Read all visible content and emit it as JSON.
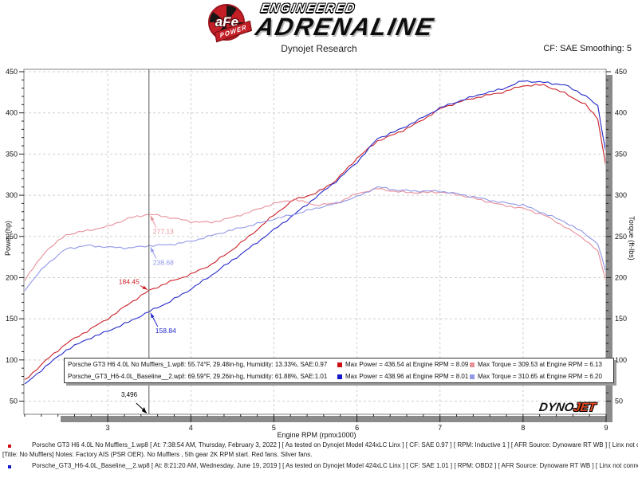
{
  "branding": {
    "afe": "aFe",
    "power": "POWER",
    "engineered": "ENGINEERED",
    "adrenaline": "ADRENALINE",
    "dynojet_dyno": "DYNO",
    "dynojet_jet": "JET"
  },
  "header": {
    "title": "Dynojet Research",
    "smoothing": "CF: SAE Smoothing: 5"
  },
  "legend": {
    "rows": [
      {
        "name": "Porsche GT3 H6 4.0L No Mufflers_1.wp8",
        "conditions": ": 55.74°F, 29.48in-hg, Humidity: 13.33%, SAE:0.97",
        "max_power": "Max Power = 436.54 at Engine RPM = 8.09",
        "max_torque": "Max Torque = 309.53 at Engine RPM = 6.13",
        "power_color": "#cc1016",
        "torque_color": "#e8909a"
      },
      {
        "name": "Porsche_GT3_H6-4.0L_Baseline__2.wp8",
        "conditions": ": 69.59°F, 29.26in-hg, Humidity: 61.88%, SAE:1.01",
        "max_power": "Max Power = 438.96 at Engine RPM = 8.01",
        "max_torque": "Max Torque = 310.65 at Engine RPM = 6.20",
        "power_color": "#1418cc",
        "torque_color": "#9098e8"
      }
    ]
  },
  "footer": {
    "entries": [
      {
        "bullet_color": "#cc1016",
        "line1": "Porsche GT3 H6 4.0L No Mufflers_1.wp8 [ At: 7:38:54 AM, Thursday, February 3, 2022 ] [ As tested on Dynojet Model 424xLC Linx ] [ CF: SAE 0.97 ] [ RPM: Inductive 1 ] [ AFR Source: Dynoware RT WB ] [ Linx not connected ]",
        "line2": "[Title: No Mufflers]  Notes: Factory AIS (PSR OER). No Mufflers , 5th gear 2K RPM start. Red fans. Silver fans."
      },
      {
        "bullet_color": "#1418cc",
        "line1": "Porsche_GT3_H6-4.0L_Baseline__2.wp8 [ At: 8:21:20 AM, Wednesday, June 19, 2019 ] [ As tested on Dynojet Model 424xLC Linx ] [ CF: SAE 1.01 ] [ RPM: OBD2 ] [ AFR Source: Dynoware RT WB ] [ Linx not connected ] [Title: B",
        "line2": ""
      }
    ]
  },
  "chart_data": {
    "type": "line",
    "title": "Dynojet Research",
    "xlabel": "Engine RPM (rpmx1000)",
    "ylabel_left": "Power (hp)",
    "ylabel_right": "Torque (ft-lbs)",
    "xlim": [
      2,
      9
    ],
    "ylim": [
      50,
      450
    ],
    "x_major_ticks": [
      3,
      4,
      5,
      6,
      7,
      8,
      9
    ],
    "x_minor_step": 0.2,
    "y_major_step": 50,
    "y_minor_step": 10,
    "grid": true,
    "x": [
      2.0,
      2.25,
      2.5,
      2.75,
      3.0,
      3.25,
      3.5,
      3.75,
      4.0,
      4.25,
      4.5,
      4.75,
      5.0,
      5.25,
      5.5,
      5.75,
      6.0,
      6.25,
      6.5,
      6.75,
      7.0,
      7.25,
      7.5,
      7.75,
      8.0,
      8.25,
      8.5,
      8.75,
      8.9,
      9.0
    ],
    "series": [
      {
        "name": "Power - No Mufflers_1",
        "unit": "hp",
        "color": "#cc2028",
        "values": [
          75,
          99,
          120,
          135,
          150,
          168,
          184.4,
          195,
          204,
          216,
          234,
          254,
          276,
          295,
          302,
          318,
          345,
          366,
          376,
          389,
          405,
          414,
          420,
          425,
          433,
          434,
          424,
          410,
          393,
          334
        ]
      },
      {
        "name": "Power - Baseline_2",
        "unit": "hp",
        "color": "#2428c8",
        "values": [
          70,
          92,
          112,
          125,
          135,
          146,
          158.8,
          171,
          186,
          203,
          221,
          239,
          258,
          277,
          297,
          317,
          340,
          369,
          379,
          392,
          406,
          415,
          423,
          429,
          438.9,
          437,
          434,
          421,
          408,
          351
        ]
      },
      {
        "name": "Torque - No Mufflers_1",
        "unit": "ft-lbs",
        "color": "#e8909a",
        "values": [
          197,
          232,
          252,
          257,
          262,
          272,
          277.1,
          273,
          268,
          267,
          273,
          281,
          290,
          295,
          288,
          290,
          302,
          308,
          304,
          303,
          304,
          300,
          294,
          288,
          284,
          276,
          262,
          246,
          232,
          195
        ]
      },
      {
        "name": "Torque - Baseline_2",
        "unit": "ft-lbs",
        "color": "#9098e8",
        "values": [
          185,
          215,
          235,
          239,
          237,
          236,
          238.7,
          240,
          244,
          251,
          258,
          264,
          271,
          277,
          284,
          290,
          298,
          310,
          306,
          305,
          305,
          301,
          296,
          291,
          288,
          278,
          268,
          253,
          241,
          205
        ]
      }
    ],
    "max_values": [
      {
        "series": 0,
        "text": "Max Power = 436.54 at Engine RPM = 8.09"
      },
      {
        "series": 1,
        "text": "Max Power = 438.96 at Engine RPM = 8.01"
      },
      {
        "series": 2,
        "text": "Max Torque = 309.53 at Engine RPM = 6.13"
      },
      {
        "series": 3,
        "text": "Max Torque = 310.65 at Engine RPM = 6.20"
      }
    ],
    "cursor": {
      "rpm": 3.496,
      "label": "3,496",
      "readings": [
        {
          "series": 2,
          "value": 277.13,
          "label": "277.13"
        },
        {
          "series": 3,
          "value": 238.68,
          "label": "238.68"
        },
        {
          "series": 0,
          "value": 184.45,
          "label": "184.45"
        },
        {
          "series": 1,
          "value": 158.84,
          "label": "158.84"
        }
      ]
    }
  }
}
